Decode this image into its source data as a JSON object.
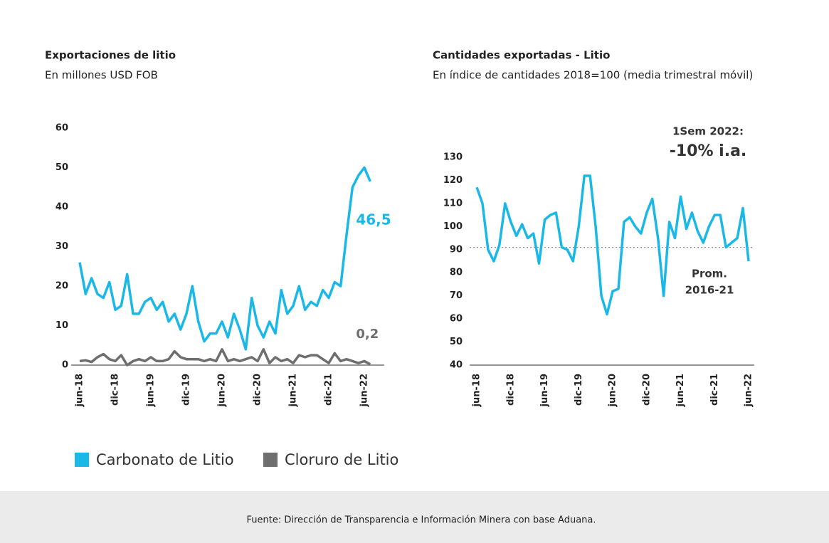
{
  "chart_data": [
    {
      "type": "line",
      "title": "Exportaciones de litio",
      "subtitle": "En millones USD FOB",
      "categories": [
        "jun-18",
        null,
        null,
        null,
        null,
        null,
        "dic-18",
        null,
        null,
        null,
        null,
        null,
        "jun-19",
        null,
        null,
        null,
        null,
        null,
        "dic-19",
        null,
        null,
        null,
        null,
        null,
        "jun-20",
        null,
        null,
        null,
        null,
        null,
        "dic-20",
        null,
        null,
        null,
        null,
        null,
        "jun-21",
        null,
        null,
        null,
        null,
        null,
        "dic-21",
        null,
        null,
        null,
        null,
        null,
        "jun-22",
        null
      ],
      "series": [
        {
          "name": "Carbonato de Litio",
          "color": "#1ab8e8",
          "values": [
            26,
            18,
            22,
            18,
            17,
            21,
            14,
            15,
            23,
            13,
            13,
            16,
            17,
            14,
            16,
            11,
            13,
            9,
            13,
            20,
            11,
            6,
            8,
            8,
            11,
            7,
            13,
            9,
            4,
            17,
            10,
            7,
            11,
            8,
            19,
            13,
            15,
            20,
            14,
            16,
            15,
            19,
            17,
            21,
            20,
            33,
            45,
            48,
            50,
            46.5
          ],
          "value_labels": [
            null,
            null,
            null,
            null,
            null,
            null,
            null,
            null,
            null,
            null,
            null,
            null,
            null,
            null,
            null,
            null,
            null,
            null,
            null,
            null,
            null,
            null,
            null,
            null,
            null,
            null,
            null,
            null,
            null,
            null,
            null,
            null,
            null,
            null,
            null,
            null,
            null,
            null,
            null,
            null,
            null,
            null,
            null,
            null,
            null,
            null,
            null,
            null,
            null,
            "46,5"
          ]
        },
        {
          "name": "Cloruro de Litio",
          "color": "#6e6e6e",
          "values": [
            1,
            1.2,
            0.8,
            2,
            2.8,
            1.5,
            1,
            2.5,
            0,
            1,
            1.5,
            1,
            2,
            1,
            1,
            1.5,
            3.5,
            2,
            1.5,
            1.5,
            1.5,
            1,
            1.5,
            1,
            4,
            1,
            1.5,
            1,
            1.5,
            2,
            1,
            4,
            0.5,
            2,
            1,
            1.5,
            0.5,
            2.5,
            2,
            2.5,
            2.5,
            1.5,
            0.5,
            3,
            1,
            1.5,
            1,
            0.5,
            1,
            0.2
          ],
          "value_labels": [
            null,
            null,
            null,
            null,
            null,
            null,
            null,
            null,
            null,
            null,
            null,
            null,
            null,
            null,
            null,
            null,
            null,
            null,
            null,
            null,
            null,
            null,
            null,
            null,
            null,
            null,
            null,
            null,
            null,
            null,
            null,
            null,
            null,
            null,
            null,
            null,
            null,
            null,
            null,
            null,
            null,
            null,
            null,
            null,
            null,
            null,
            null,
            null,
            null,
            "0,2"
          ]
        }
      ],
      "ylim": [
        0,
        60
      ],
      "yticks": [
        0,
        10,
        20,
        30,
        40,
        50,
        60
      ],
      "grid": false,
      "legend": "bottom"
    },
    {
      "type": "line",
      "title": "Cantidades exportadas - Litio",
      "subtitle": "En índice de cantidades 2018=100 (media trimestral móvil)",
      "categories": [
        "jun-18",
        null,
        null,
        null,
        null,
        null,
        "dic-18",
        null,
        null,
        null,
        null,
        null,
        "jun-19",
        null,
        null,
        null,
        null,
        null,
        "dic-19",
        null,
        null,
        null,
        null,
        null,
        "jun-20",
        null,
        null,
        null,
        null,
        null,
        "dic-20",
        null,
        null,
        null,
        null,
        null,
        "jun-21",
        null,
        null,
        null,
        null,
        null,
        "dic-21",
        null,
        null,
        null,
        null,
        null,
        "jun-22"
      ],
      "color": "#1ab8e8",
      "values": [
        117,
        110,
        90,
        85,
        92,
        110,
        102,
        96,
        101,
        95,
        97,
        84,
        103,
        105,
        106,
        91,
        90,
        85,
        100,
        122,
        122,
        100,
        70,
        62,
        72,
        73,
        102,
        104,
        100,
        97,
        106,
        112,
        95,
        70,
        102,
        95,
        113,
        99,
        106,
        98,
        93,
        100,
        105,
        105,
        91,
        93,
        95,
        108,
        85
      ],
      "ylim": [
        40,
        130
      ],
      "yticks": [
        40,
        50,
        60,
        70,
        80,
        90,
        100,
        110,
        120,
        130
      ],
      "grid": false,
      "reference_line": {
        "value": 91,
        "label_lines": [
          "Prom.",
          "2016-21"
        ]
      },
      "annotations": [
        "1Sem 2022:",
        "-10% i.a."
      ]
    }
  ],
  "source": "Fuente: Dirección de Transparencia e Información Minera con base Aduana."
}
